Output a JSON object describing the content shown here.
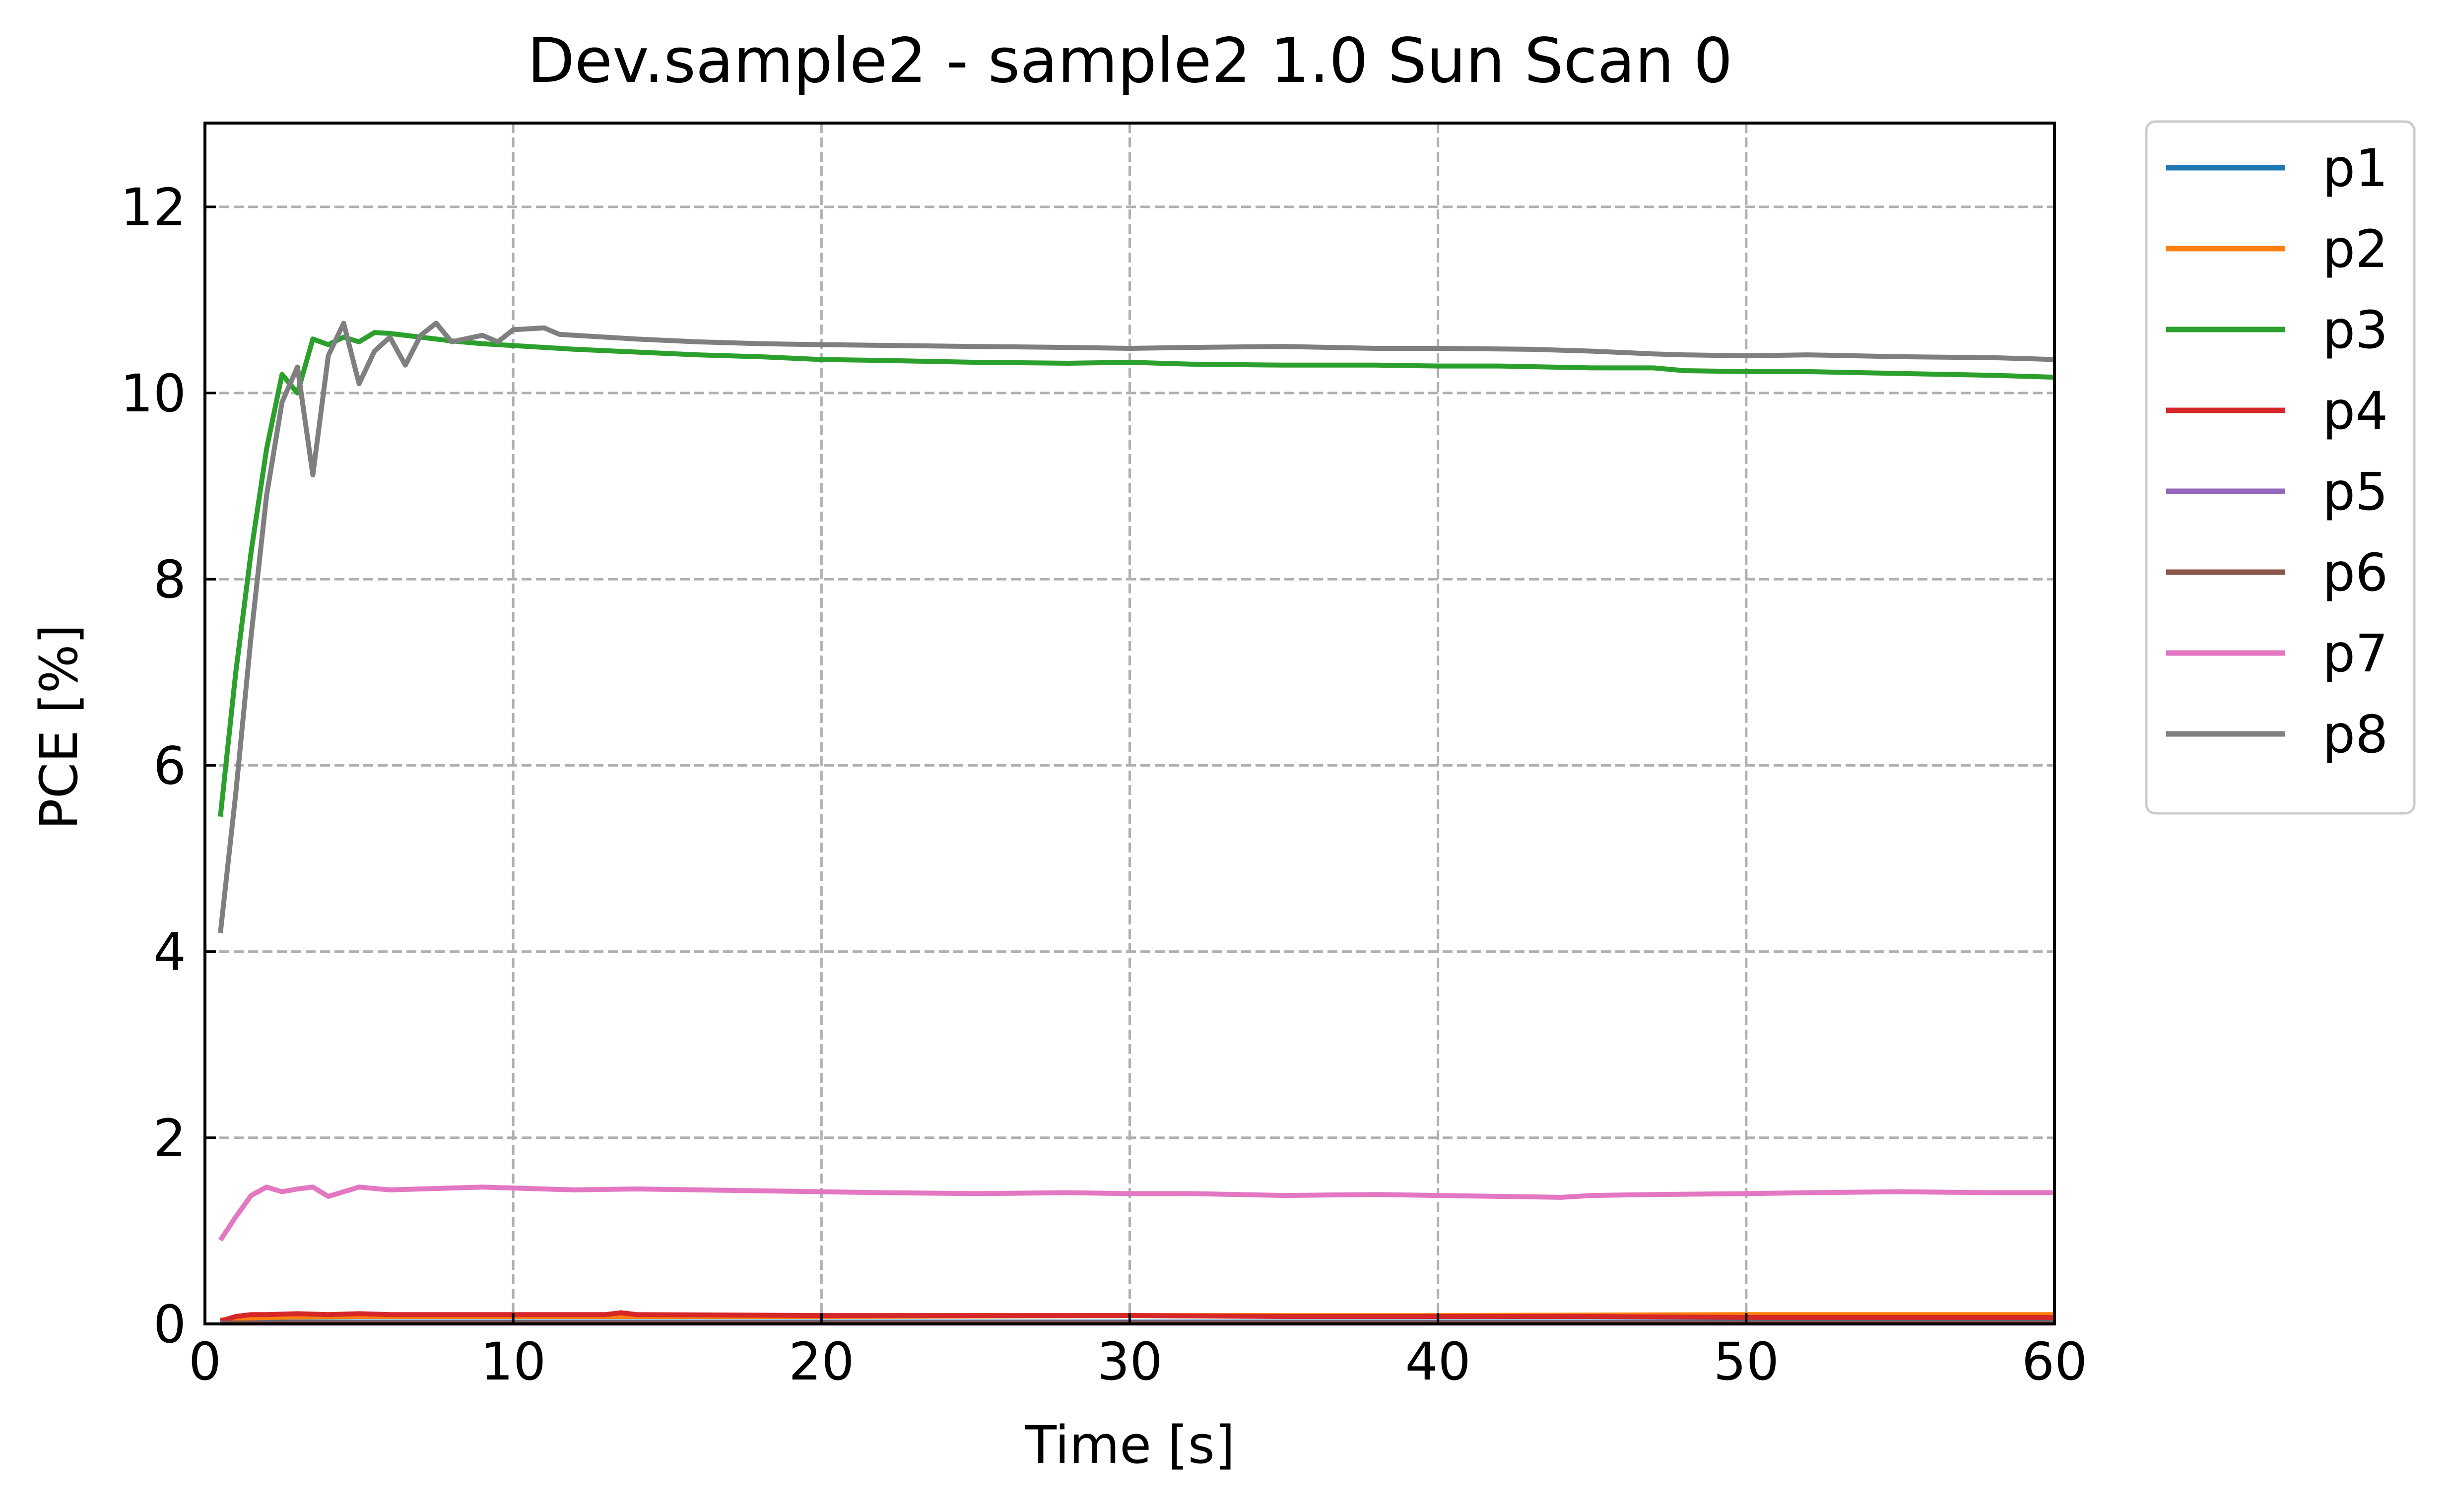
{
  "chart_data": {
    "type": "line",
    "title": "Dev.sample2 - sample2  1.0 Sun Scan 0",
    "xlabel": "Time [s]",
    "ylabel": "PCE [%]",
    "xlim": [
      0,
      60
    ],
    "ylim": [
      0,
      12.9
    ],
    "xticks": [
      0,
      10,
      20,
      30,
      40,
      50,
      60
    ],
    "yticks": [
      0,
      2,
      4,
      6,
      8,
      10,
      12
    ],
    "grid": true,
    "legend_position": "outside-top-right",
    "series": [
      {
        "name": "p1",
        "color": "#1f77b4",
        "points": [
          [
            0.5,
            0.02
          ],
          [
            2,
            0.02
          ],
          [
            5,
            0.02
          ],
          [
            10,
            0.02
          ],
          [
            20,
            0.02
          ],
          [
            30,
            0.02
          ],
          [
            40,
            0.02
          ],
          [
            50,
            0.02
          ],
          [
            60,
            0.02
          ]
        ]
      },
      {
        "name": "p2",
        "color": "#ff7f0e",
        "points": [
          [
            0.5,
            0.04
          ],
          [
            1,
            0.06
          ],
          [
            2,
            0.07
          ],
          [
            5,
            0.08
          ],
          [
            10,
            0.08
          ],
          [
            20,
            0.08
          ],
          [
            30,
            0.09
          ],
          [
            40,
            0.09
          ],
          [
            50,
            0.1
          ],
          [
            60,
            0.1
          ]
        ]
      },
      {
        "name": "p3",
        "color": "#2ca02c",
        "points": [
          [
            0.5,
            5.45
          ],
          [
            1,
            7.0
          ],
          [
            1.5,
            8.3
          ],
          [
            2,
            9.4
          ],
          [
            2.5,
            10.2
          ],
          [
            3,
            10.0
          ],
          [
            3.5,
            10.58
          ],
          [
            4,
            10.52
          ],
          [
            4.5,
            10.6
          ],
          [
            5,
            10.55
          ],
          [
            5.5,
            10.65
          ],
          [
            6,
            10.64
          ],
          [
            7,
            10.6
          ],
          [
            8,
            10.56
          ],
          [
            9,
            10.53
          ],
          [
            10,
            10.51
          ],
          [
            12,
            10.47
          ],
          [
            14,
            10.44
          ],
          [
            16,
            10.41
          ],
          [
            18,
            10.39
          ],
          [
            20,
            10.36
          ],
          [
            22,
            10.35
          ],
          [
            25,
            10.33
          ],
          [
            28,
            10.32
          ],
          [
            30,
            10.33
          ],
          [
            32,
            10.31
          ],
          [
            35,
            10.3
          ],
          [
            38,
            10.3
          ],
          [
            40,
            10.29
          ],
          [
            42,
            10.29
          ],
          [
            45,
            10.27
          ],
          [
            47,
            10.27
          ],
          [
            48,
            10.24
          ],
          [
            50,
            10.23
          ],
          [
            52,
            10.23
          ],
          [
            55,
            10.21
          ],
          [
            58,
            10.19
          ],
          [
            60,
            10.17
          ]
        ]
      },
      {
        "name": "p4",
        "color": "#d62728",
        "points": [
          [
            0.5,
            0.03
          ],
          [
            1,
            0.08
          ],
          [
            1.5,
            0.1
          ],
          [
            2,
            0.1
          ],
          [
            3,
            0.11
          ],
          [
            4,
            0.1
          ],
          [
            5,
            0.11
          ],
          [
            6,
            0.1
          ],
          [
            8,
            0.1
          ],
          [
            10,
            0.1
          ],
          [
            13,
            0.1
          ],
          [
            13.5,
            0.12
          ],
          [
            14,
            0.1
          ],
          [
            20,
            0.09
          ],
          [
            25,
            0.09
          ],
          [
            30,
            0.09
          ],
          [
            35,
            0.08
          ],
          [
            40,
            0.08
          ],
          [
            45,
            0.08
          ],
          [
            50,
            0.07
          ],
          [
            55,
            0.07
          ],
          [
            60,
            0.07
          ]
        ]
      },
      {
        "name": "p5",
        "color": "#9467bd",
        "points": [
          [
            0.5,
            0.01
          ],
          [
            10,
            0.01
          ],
          [
            20,
            0.01
          ],
          [
            30,
            0.01
          ],
          [
            40,
            0.01
          ],
          [
            50,
            0.01
          ],
          [
            60,
            0.01
          ]
        ]
      },
      {
        "name": "p6",
        "color": "#8c564b",
        "points": [
          [
            0.5,
            0.01
          ],
          [
            10,
            0.01
          ],
          [
            20,
            0.01
          ],
          [
            30,
            0.01
          ],
          [
            40,
            0.01
          ],
          [
            50,
            0.01
          ],
          [
            60,
            0.01
          ]
        ]
      },
      {
        "name": "p7",
        "color": "#e377c2",
        "points": [
          [
            0.5,
            0.9
          ],
          [
            1,
            1.15
          ],
          [
            1.5,
            1.38
          ],
          [
            2,
            1.47
          ],
          [
            2.5,
            1.42
          ],
          [
            3,
            1.45
          ],
          [
            3.5,
            1.47
          ],
          [
            4,
            1.37
          ],
          [
            4.5,
            1.42
          ],
          [
            5,
            1.47
          ],
          [
            6,
            1.44
          ],
          [
            7,
            1.45
          ],
          [
            8,
            1.46
          ],
          [
            9,
            1.47
          ],
          [
            10,
            1.46
          ],
          [
            12,
            1.44
          ],
          [
            14,
            1.45
          ],
          [
            16,
            1.44
          ],
          [
            18,
            1.43
          ],
          [
            20,
            1.42
          ],
          [
            22,
            1.41
          ],
          [
            25,
            1.4
          ],
          [
            28,
            1.41
          ],
          [
            30,
            1.4
          ],
          [
            32,
            1.4
          ],
          [
            35,
            1.38
          ],
          [
            38,
            1.39
          ],
          [
            40,
            1.38
          ],
          [
            42,
            1.37
          ],
          [
            44,
            1.36
          ],
          [
            45,
            1.38
          ],
          [
            47,
            1.39
          ],
          [
            50,
            1.4
          ],
          [
            52,
            1.41
          ],
          [
            55,
            1.42
          ],
          [
            58,
            1.41
          ],
          [
            60,
            1.41
          ]
        ]
      },
      {
        "name": "p8",
        "color": "#7f7f7f",
        "points": [
          [
            0.5,
            4.2
          ],
          [
            1,
            5.7
          ],
          [
            1.5,
            7.4
          ],
          [
            2,
            8.9
          ],
          [
            2.5,
            9.9
          ],
          [
            3,
            10.28
          ],
          [
            3.5,
            9.12
          ],
          [
            4,
            10.4
          ],
          [
            4.5,
            10.75
          ],
          [
            5,
            10.1
          ],
          [
            5.5,
            10.45
          ],
          [
            6,
            10.6
          ],
          [
            6.5,
            10.3
          ],
          [
            7,
            10.62
          ],
          [
            7.5,
            10.75
          ],
          [
            8,
            10.55
          ],
          [
            9,
            10.62
          ],
          [
            9.5,
            10.55
          ],
          [
            10,
            10.68
          ],
          [
            11,
            10.7
          ],
          [
            11.5,
            10.63
          ],
          [
            12,
            10.62
          ],
          [
            14,
            10.58
          ],
          [
            16,
            10.55
          ],
          [
            18,
            10.53
          ],
          [
            20,
            10.52
          ],
          [
            25,
            10.5
          ],
          [
            28,
            10.49
          ],
          [
            30,
            10.48
          ],
          [
            32,
            10.49
          ],
          [
            35,
            10.5
          ],
          [
            38,
            10.48
          ],
          [
            40,
            10.48
          ],
          [
            43,
            10.47
          ],
          [
            45,
            10.45
          ],
          [
            47,
            10.42
          ],
          [
            48,
            10.41
          ],
          [
            50,
            10.4
          ],
          [
            52,
            10.41
          ],
          [
            55,
            10.39
          ],
          [
            58,
            10.38
          ],
          [
            60,
            10.36
          ]
        ]
      }
    ]
  }
}
